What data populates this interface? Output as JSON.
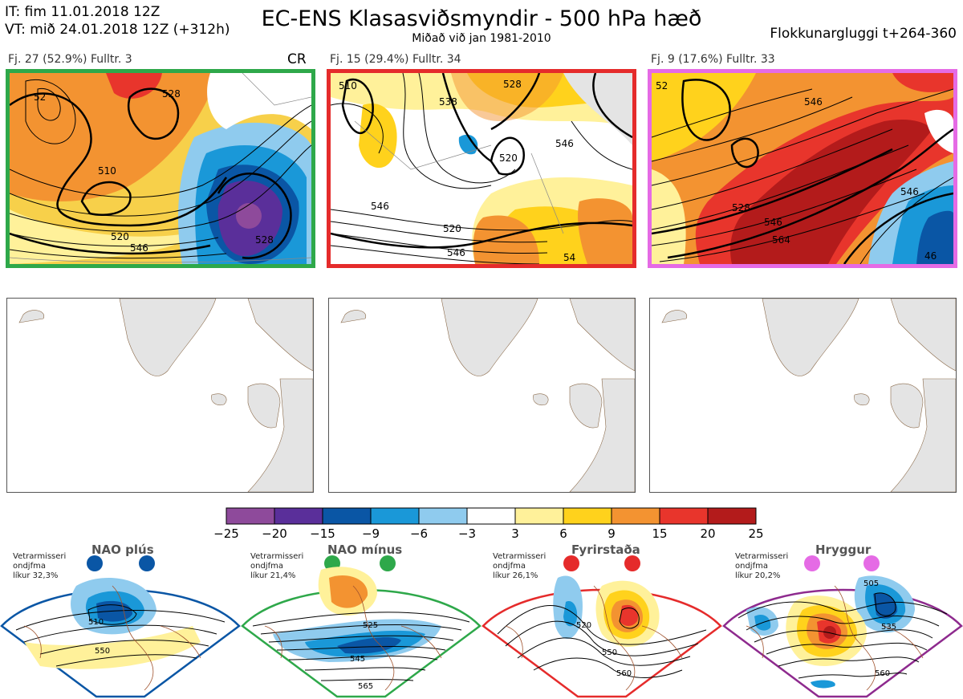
{
  "header": {
    "it": "IT: fim 11.01.2018 12Z",
    "vt": "VT: mið 24.01.2018 12Z  (+312h)",
    "title": "EC-ENS Klasasviðsmyndir - 500 hPa hæð",
    "subtitle": "Miðað við jan 1981-2010",
    "window": "Flokkunargluggi t+264-360"
  },
  "clusters": [
    {
      "label": "Fj. 27 (52.9%)   Fulltr. 3",
      "tag": "CR",
      "border": "#2ea84a",
      "contours": [
        "510",
        "528",
        "520",
        "546",
        "528",
        "52"
      ]
    },
    {
      "label": "Fj. 15 (29.4%)   Fulltr. 34",
      "tag": "",
      "border": "#e52b2b",
      "contours": [
        "510",
        "520",
        "528",
        "546",
        "546",
        "538",
        "520",
        "546",
        "54"
      ]
    },
    {
      "label": "Fj. 9 (17.6%)   Fulltr. 33",
      "tag": "",
      "border": "#e56be5",
      "contours": [
        "546",
        "528",
        "546",
        "564",
        "546",
        "46",
        "52"
      ]
    }
  ],
  "colorbar": {
    "colors": [
      "#8e4a9b",
      "#5a2f9a",
      "#0a56a5",
      "#1a98d8",
      "#8fcbee",
      "#ffffff",
      "#fff19a",
      "#ffd21c",
      "#f39331",
      "#e8352c",
      "#b31b1b"
    ],
    "ticks": [
      "−25",
      "−20",
      "−15",
      "−9",
      "−6",
      "−3",
      "3",
      "6",
      "9",
      "15",
      "20",
      "25"
    ]
  },
  "regimes": [
    {
      "name": "NAO plús",
      "info": [
        "Vetrarmisseri",
        "ondjfma",
        "líkur 32,3%"
      ],
      "color": "#0a56a5",
      "contours": [
        "510",
        "550"
      ]
    },
    {
      "name": "NAO mínus",
      "info": [
        "Vetrarmisseri",
        "ondjfma",
        "líkur 21,4%"
      ],
      "color": "#2ea84a",
      "contours": [
        "525",
        "545",
        "565"
      ]
    },
    {
      "name": "Fyrirstaða",
      "info": [
        "Vetrarmisseri",
        "ondjfma",
        "líkur 26,1%"
      ],
      "color": "#e52b2b",
      "contours": [
        "520",
        "550",
        "560"
      ]
    },
    {
      "name": "Hryggur",
      "info": [
        "Vetrarmisseri",
        "ondjfma",
        "líkur 20,2%"
      ],
      "color": "#e56be5",
      "contours": [
        "505",
        "535",
        "560"
      ]
    }
  ]
}
